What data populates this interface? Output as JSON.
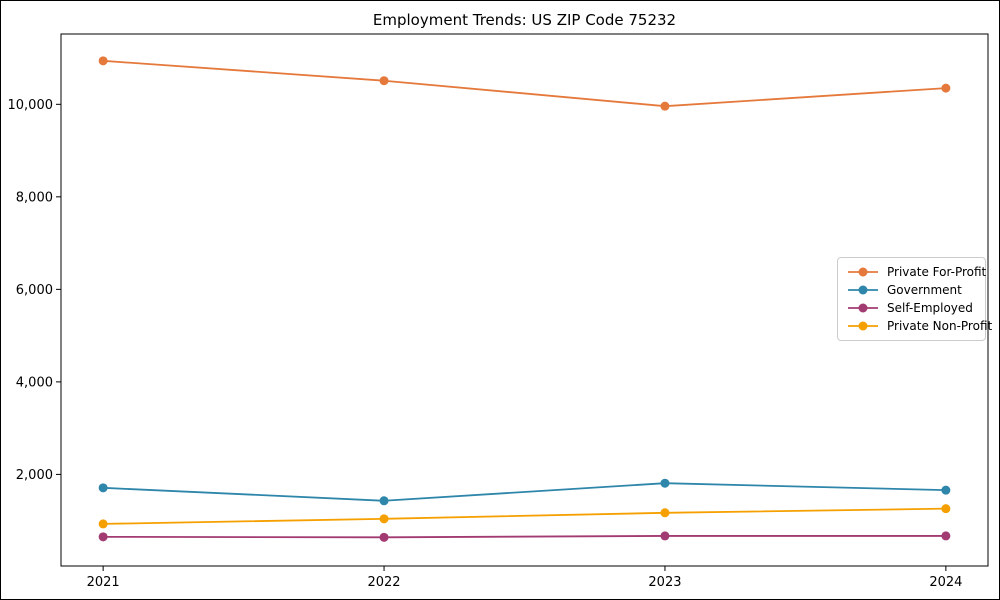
{
  "title": "Employment Trends: US ZIP Code 75232",
  "chart_data": {
    "type": "line",
    "title": "Employment Trends: US ZIP Code 75232",
    "x": [
      2021,
      2022,
      2023,
      2024
    ],
    "x_tick_labels": [
      "2021",
      "2022",
      "2023",
      "2024"
    ],
    "y_ticks": [
      2000,
      4000,
      6000,
      8000,
      10000
    ],
    "y_tick_labels": [
      "2,000",
      "4,000",
      "6,000",
      "8,000",
      "10,000"
    ],
    "xlim": [
      2020.85,
      2024.15
    ],
    "ylim": [
      20,
      11520
    ],
    "grid": false,
    "legend_position": "center-right",
    "xlabel": "",
    "ylabel": "",
    "series": [
      {
        "name": "Private For-Profit",
        "color": "#E5793C",
        "values": [
          10940,
          10510,
          9960,
          10350
        ]
      },
      {
        "name": "Government",
        "color": "#2E86AB",
        "values": [
          1710,
          1430,
          1810,
          1660
        ]
      },
      {
        "name": "Self-Employed",
        "color": "#A23B72",
        "values": [
          650,
          640,
          670,
          670
        ]
      },
      {
        "name": "Private Non-Profit",
        "color": "#F5A000",
        "values": [
          930,
          1040,
          1170,
          1260
        ]
      }
    ]
  }
}
